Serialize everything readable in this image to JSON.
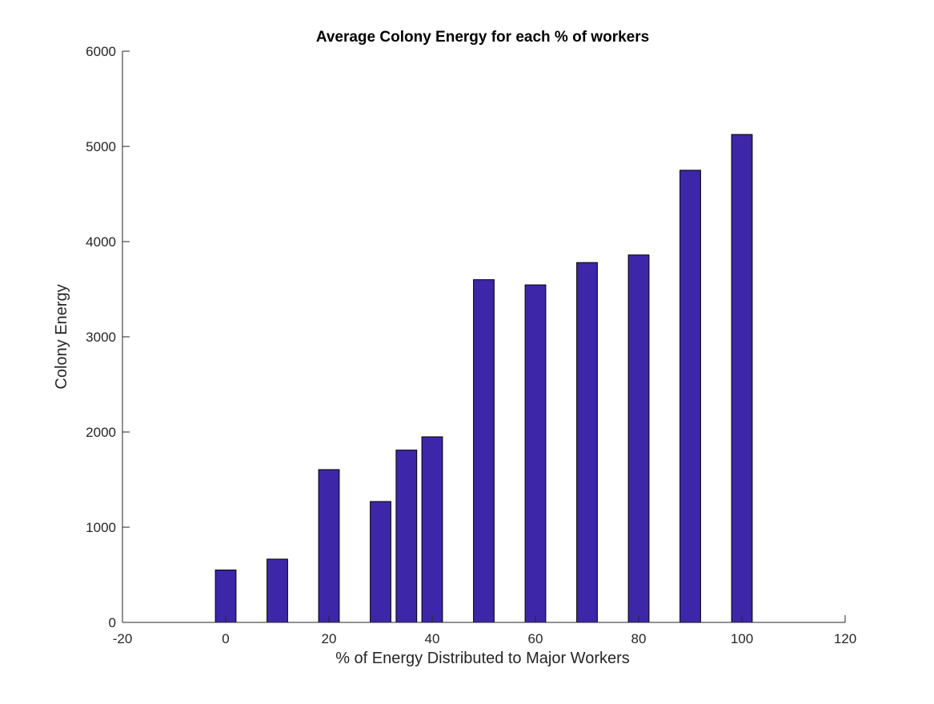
{
  "chart_data": {
    "type": "bar",
    "title": "Average Colony Energy for each % of workers",
    "xlabel": "% of Energy Distributed to Major Workers",
    "ylabel": "Colony Energy",
    "x": [
      0,
      10,
      20,
      30,
      35,
      40,
      50,
      60,
      70,
      80,
      90,
      100
    ],
    "values": [
      550,
      665,
      1605,
      1270,
      1810,
      1950,
      3600,
      3545,
      3780,
      3860,
      4750,
      5125
    ],
    "xlim": [
      -20,
      120
    ],
    "ylim": [
      0,
      6000
    ],
    "xticks": [
      -20,
      0,
      20,
      40,
      60,
      80,
      100,
      120
    ],
    "yticks": [
      0,
      1000,
      2000,
      3000,
      4000,
      5000,
      6000
    ],
    "bar_color": "#3d27a8",
    "edge_color": "#000000",
    "grid": false,
    "legend": "none"
  }
}
